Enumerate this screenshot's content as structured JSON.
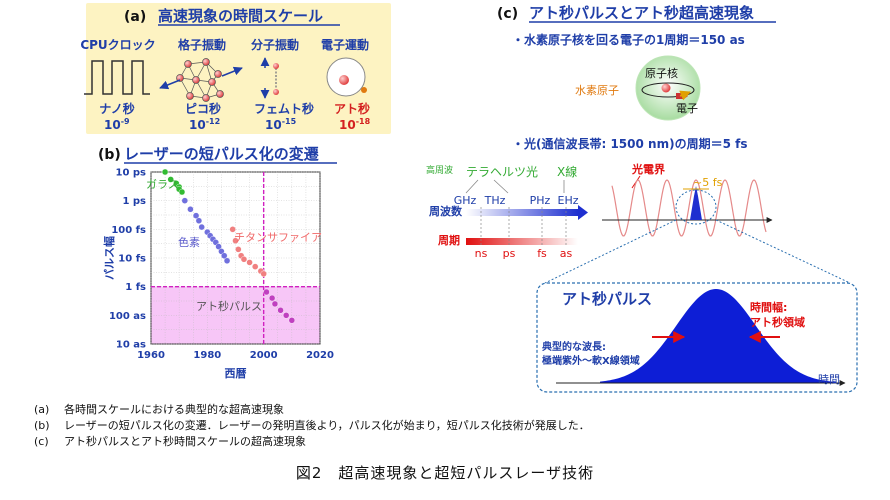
{
  "panel_a": {
    "label": "(a)",
    "title": "高速現象の時間スケール",
    "columns": [
      {
        "name": "CPUクロック",
        "unit": "ナノ秒",
        "exp": "10",
        "pow": "-9",
        "color": "#1f3ea8"
      },
      {
        "name": "格子振動",
        "unit": "ピコ秒",
        "exp": "10",
        "pow": "-12",
        "color": "#1f3ea8"
      },
      {
        "name": "分子振動",
        "unit": "フェムト秒",
        "exp": "10",
        "pow": "-15",
        "color": "#1f3ea8"
      },
      {
        "name": "電子運動",
        "unit": "アト秒",
        "exp": "10",
        "pow": "-18",
        "color": "#d42020"
      }
    ],
    "bg_color": "#fdf3c2"
  },
  "panel_b": {
    "label": "(b)",
    "title": "レーザーの短パルス化の変遷",
    "label_glass": "ガラス",
    "label_dye": "色素",
    "label_ti": "チタンサファイア",
    "label_atto": "アト秒パルス"
  },
  "chart_data": {
    "type": "scatter",
    "xlabel": "西暦",
    "ylabel": "パルス幅",
    "xlim": [
      1960,
      2020
    ],
    "x_ticks": [
      "1960",
      "1980",
      "2000",
      "2020"
    ],
    "y_ticks": [
      "10 ps",
      "1 ps",
      "100 fs",
      "10 fs",
      "1 fs",
      "100 as",
      "10 as"
    ],
    "y_scale": "log",
    "grid": true,
    "series": [
      {
        "name": "ガラス",
        "color": "#33bb33",
        "points": [
          [
            1965,
            10000
          ],
          [
            1967,
            5500
          ],
          [
            1969,
            4000
          ],
          [
            1970,
            3000
          ],
          [
            1970,
            2500
          ],
          [
            1971,
            2000
          ]
        ]
      },
      {
        "name": "色素",
        "color": "#7070dd",
        "points": [
          [
            1972,
            1000
          ],
          [
            1974,
            500
          ],
          [
            1976,
            300
          ],
          [
            1977,
            200
          ],
          [
            1978,
            120
          ],
          [
            1980,
            80
          ],
          [
            1981,
            60
          ],
          [
            1982,
            45
          ],
          [
            1983,
            35
          ],
          [
            1984,
            25
          ],
          [
            1985,
            17
          ],
          [
            1986,
            12
          ],
          [
            1987,
            8
          ]
        ]
      },
      {
        "name": "チタンサファイア",
        "color": "#f08080",
        "points": [
          [
            1989,
            100
          ],
          [
            1990,
            40
          ],
          [
            1991,
            20
          ],
          [
            1992,
            12
          ],
          [
            1993,
            9
          ],
          [
            1995,
            7
          ],
          [
            1997,
            5
          ],
          [
            1999,
            3.5
          ],
          [
            2000,
            2.8
          ]
        ]
      },
      {
        "name": "アト秒パルス",
        "color": "#c040c0",
        "points": [
          [
            2001,
            0.65
          ],
          [
            2003,
            0.4
          ],
          [
            2004,
            0.25
          ],
          [
            2006,
            0.15
          ],
          [
            2008,
            0.1
          ],
          [
            2010,
            0.067
          ]
        ]
      }
    ]
  },
  "panel_c": {
    "label": "(c)",
    "title": "アト秒パルスとアト秒超高速現象",
    "bullet1": "・水素原子核を回る電子の1周期＝150 as",
    "hydrogen_label": "水素原子",
    "nucleus_label": "原子核",
    "electron_label": "電子",
    "bullet2": "・光(通信波長帯: 1500 nm)の周期＝5 fs",
    "high_freq": "高周波",
    "bands": "テラヘルツ光",
    "xray": "X線",
    "freq_label": "周波数",
    "freq_ticks": [
      "GHz",
      "THz",
      "PHz",
      "EHz"
    ],
    "period_label": "周期",
    "period_ticks": [
      "ns",
      "ps",
      "fs",
      "as"
    ],
    "efield_label": "光電界",
    "period_5fs": "~5 fs",
    "atto_box_title": "アト秒パルス",
    "width_label_1": "時間幅:",
    "width_label_2": "アト秒領域",
    "wave_label_1": "典型的な波長:",
    "wave_label_2": "極端紫外～軟X線領域",
    "time_axis": "時間"
  },
  "captions": [
    {
      "label": "(a)",
      "text": "各時間スケールにおける典型的な超高速現象"
    },
    {
      "label": "(b)",
      "text": "レーザーの短パルス化の変遷．レーザーの発明直後より，パルス化が始まり，短パルス化技術が発展した．"
    },
    {
      "label": "(c)",
      "text": "アト秒パルスとアト秒時間スケールの超高速現象"
    }
  ],
  "figure_title": "図2　超高速現象と超短パルスレーザ技術"
}
